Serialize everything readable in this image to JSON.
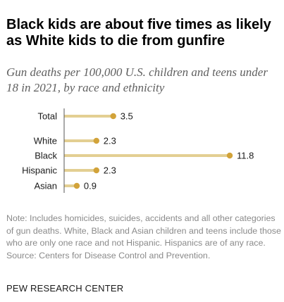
{
  "title": "Black kids are about five times as likely as White kids to die from gunfire",
  "subtitle": "Gun deaths per 100,000 U.S. children and teens under 18 in 2021, by race and ethnicity",
  "chart_data": {
    "type": "bar",
    "orientation": "horizontal",
    "categories": [
      "Total",
      "White",
      "Black",
      "Hispanic",
      "Asian"
    ],
    "values": [
      3.5,
      2.3,
      11.8,
      2.3,
      0.9
    ],
    "value_labels": [
      "3.5",
      "2.3",
      "11.8",
      "2.3",
      "0.9"
    ],
    "xlim": [
      0,
      11.8
    ],
    "bar_color": "#e3cf92",
    "dot_color": "#d2a33a",
    "axis_color": "#555555",
    "grid": false,
    "legend": "none"
  },
  "note": "Note: Includes homicides, suicides, accidents and all other categories of gun deaths. White, Black and Asian children and teens include those who are only one race and not Hispanic. Hispanics are of any race.",
  "source": "Source: Centers for Disease Control and Prevention.",
  "organization": "PEW RESEARCH CENTER"
}
